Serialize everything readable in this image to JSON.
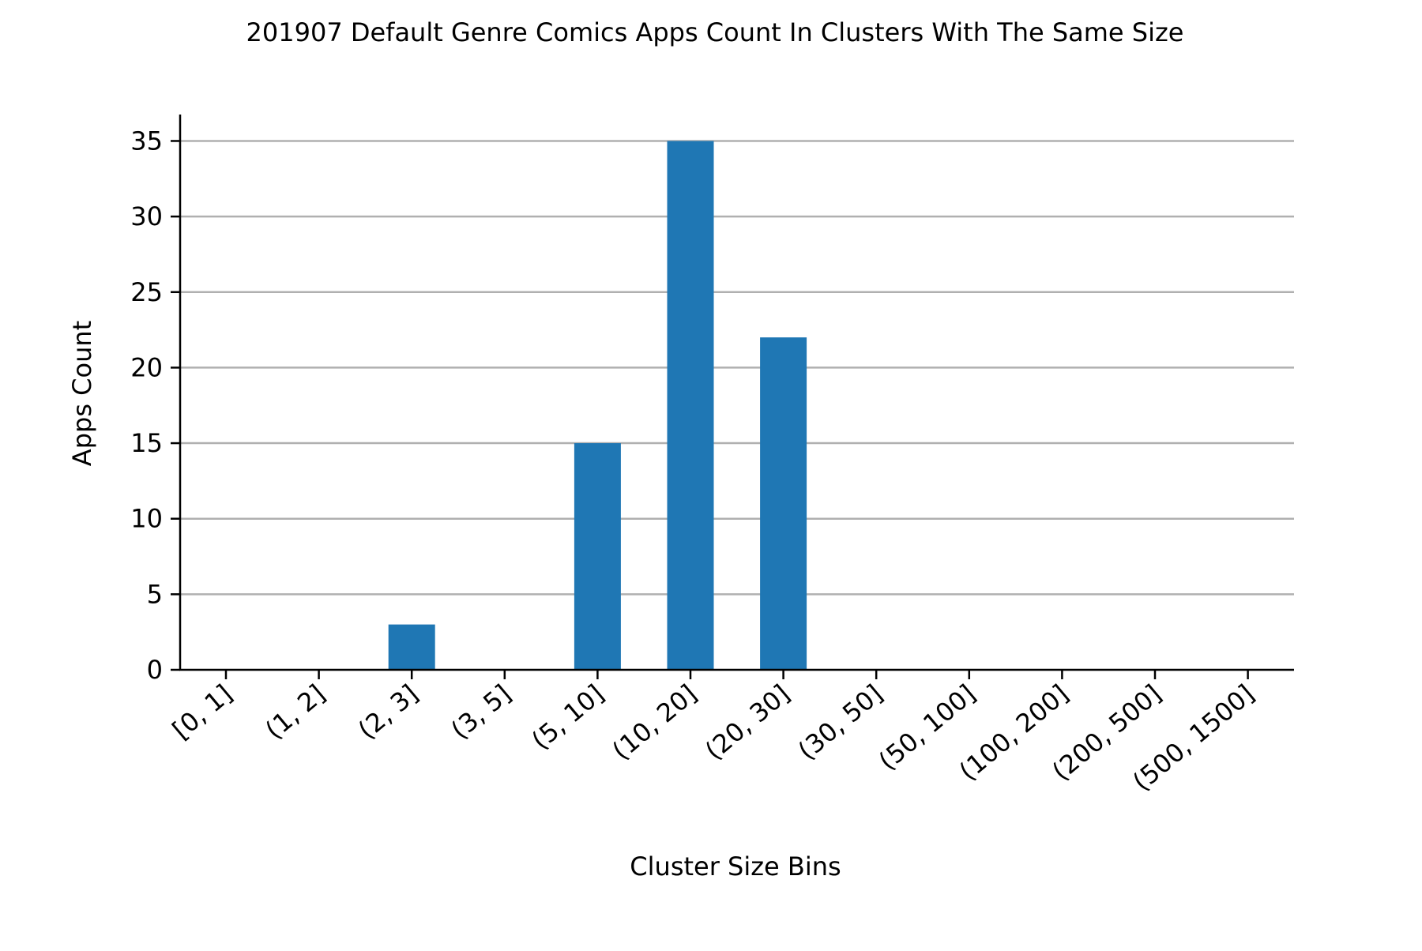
{
  "chart_data": {
    "type": "bar",
    "title": "201907 Default Genre Comics Apps Count In Clusters With The Same Size",
    "xlabel": "Cluster Size Bins",
    "ylabel": "Apps Count",
    "categories": [
      "[0, 1]",
      "(1, 2]",
      "(2, 3]",
      "(3, 5]",
      "(5, 10]",
      "(10, 20]",
      "(20, 30]",
      "(30, 50]",
      "(50, 100]",
      "(100, 200]",
      "(200, 500]",
      "(500, 1500]"
    ],
    "values": [
      0,
      0,
      3,
      0,
      15,
      35,
      22,
      0,
      0,
      0,
      0,
      0
    ],
    "yticks": [
      0,
      5,
      10,
      15,
      20,
      25,
      30,
      35
    ],
    "ylim": [
      0,
      36.75
    ],
    "grid": "horizontal",
    "legend": "none",
    "colors": {
      "bar": "#1f77b4",
      "grid": "#b0b0b0",
      "axis": "#000000"
    }
  }
}
